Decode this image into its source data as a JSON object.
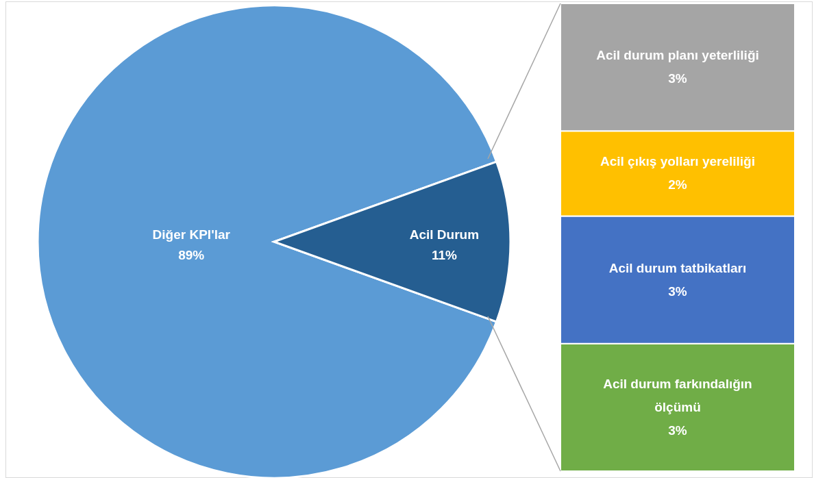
{
  "chart_data": [
    {
      "type": "pie",
      "categories": [
        "Diğer KPI'lar",
        "Acil Durum"
      ],
      "values": [
        89,
        11
      ],
      "colors": [
        "#5b9bd5",
        "#255e91"
      ],
      "value_labels": [
        "89%",
        "11%"
      ],
      "legend": false
    },
    {
      "type": "bar",
      "stacked": true,
      "categories": [
        null
      ],
      "legend": false,
      "series": [
        {
          "name": "Acil durum farkındalığın ölçümü",
          "color": "#70ad47",
          "values": [
            3
          ],
          "value_labels": [
            "3%"
          ]
        },
        {
          "name": "Acil durum tatbikatları",
          "color": "#4472c4",
          "values": [
            3
          ],
          "value_labels": [
            "3%"
          ]
        },
        {
          "name": "Acil çıkış yolları yereliliği",
          "color": "#ffc000",
          "values": [
            2
          ],
          "value_labels": [
            "2%"
          ]
        },
        {
          "name": "Acil durum planı yeterliliği",
          "color": "#a5a5a5",
          "values": [
            3
          ],
          "value_labels": [
            "3%"
          ]
        }
      ]
    }
  ]
}
